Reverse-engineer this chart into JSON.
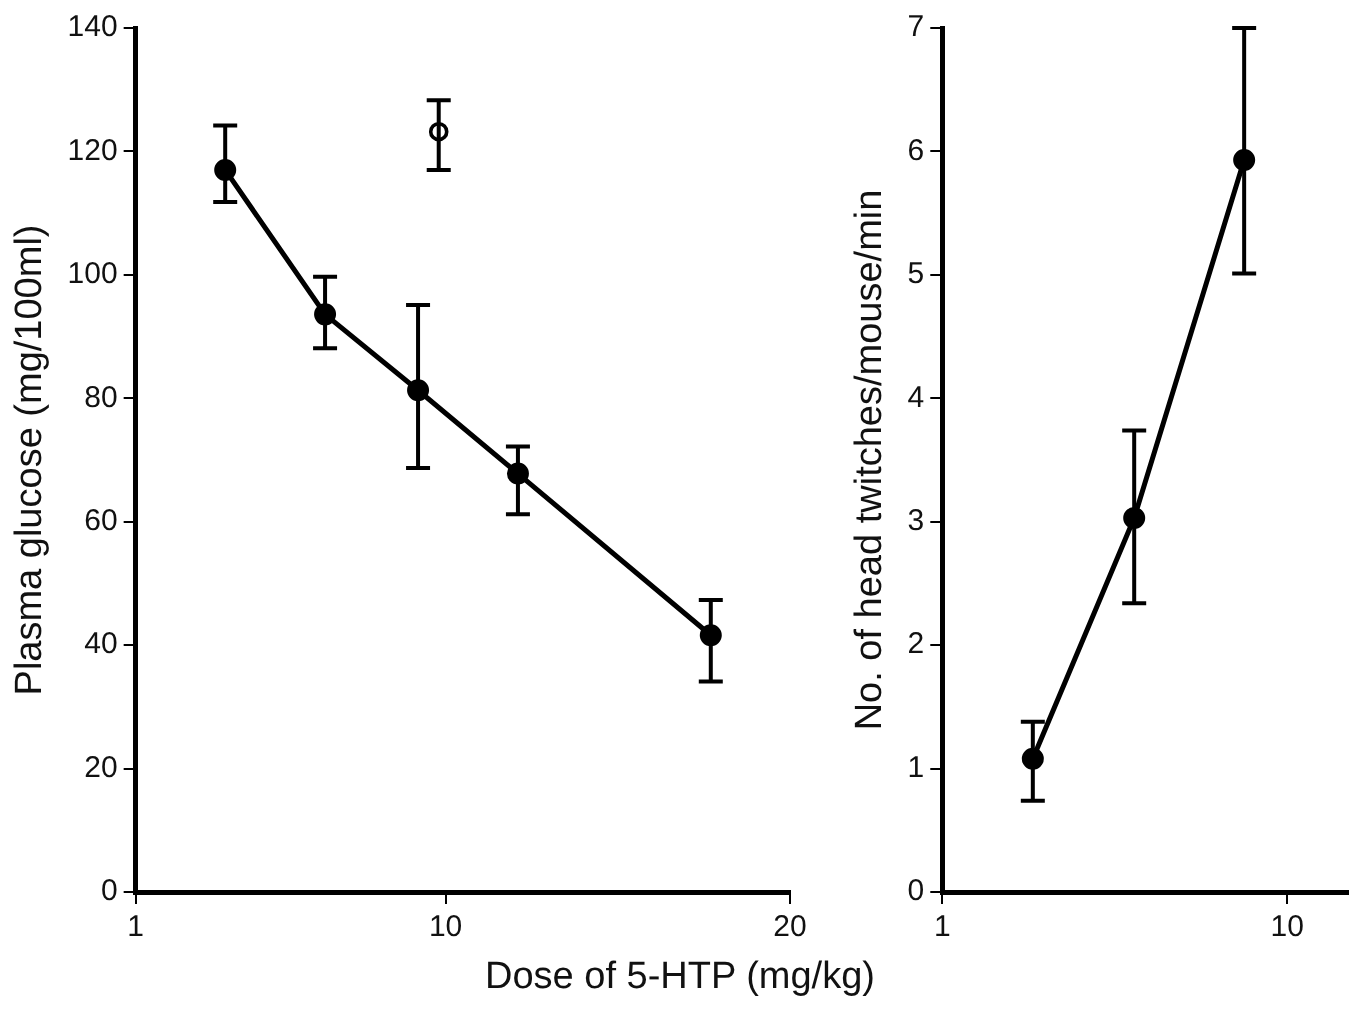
{
  "chart_data": [
    {
      "type": "line",
      "xlabel": "Dose of 5-HTP (mg/kg)",
      "ylabel": "Plasma glucose (mg/100ml)",
      "xlim": [
        1,
        20
      ],
      "xticks": [
        1,
        10,
        20
      ],
      "ylim": [
        0,
        140
      ],
      "yticks": [
        0,
        20,
        40,
        60,
        80,
        100,
        120,
        140
      ],
      "grid": false,
      "legend": false,
      "marker": "circle",
      "series": [
        {
          "type": "line",
          "color": "#000000",
          "x": [
            3.6,
            6.5,
            9.2,
            12.1,
            17.7
          ],
          "values": [
            117,
            93.6,
            81.3,
            67.8,
            41.6
          ],
          "errors": [
            [
              111.8,
              124.2
            ],
            [
              88.1,
              99.7
            ],
            [
              68.7,
              95.1
            ],
            [
              61.2,
              72.2
            ],
            [
              34.1,
              47.3
            ]
          ]
        },
        {
          "type": "scatter",
          "color": "#000000",
          "x": [
            9.8
          ],
          "values": [
            123.2
          ],
          "errors": [
            [
              117,
              128.3
            ]
          ]
        }
      ]
    },
    {
      "type": "line",
      "ylabel": "No. of head twitches/mouse/min",
      "log": "x",
      "xlim": [
        1,
        15
      ],
      "xticks": [
        1,
        10
      ],
      "ylim": [
        0,
        7
      ],
      "yticks": [
        0,
        1,
        2,
        3,
        4,
        5,
        6,
        7
      ],
      "grid": false,
      "legend": false,
      "marker": "circle",
      "series": [
        {
          "type": "line",
          "color": "#000000",
          "x": [
            1.83,
            3.6,
            7.5
          ],
          "values": [
            1.08,
            3.03,
            5.93
          ],
          "errors": [
            [
              0.74,
              1.38
            ],
            [
              2.34,
              3.74
            ],
            [
              5.01,
              7.0
            ]
          ]
        }
      ]
    }
  ]
}
